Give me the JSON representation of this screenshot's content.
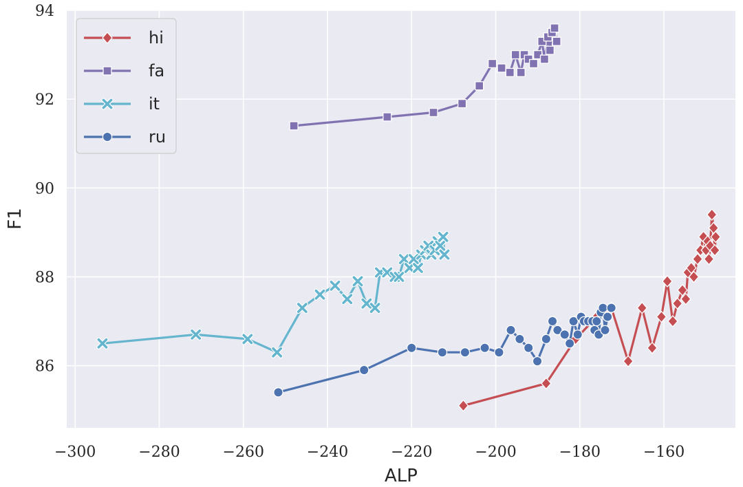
{
  "chart_data": {
    "type": "line",
    "title": "",
    "xlabel": "ALP",
    "ylabel": "F1",
    "xlim": [
      -302,
      -143
    ],
    "ylim": [
      84.6,
      94
    ],
    "xticks": [
      -300,
      -280,
      -260,
      -240,
      -220,
      -200,
      -180,
      -160
    ],
    "xtick_labels": [
      "−300",
      "−280",
      "−260",
      "−240",
      "−220",
      "−200",
      "−180",
      "−160"
    ],
    "yticks": [
      86,
      88,
      90,
      92,
      94
    ],
    "ytick_labels": [
      "86",
      "88",
      "90",
      "92",
      "94"
    ],
    "grid": true,
    "background": "#eaeaf2",
    "legend_position": "top-left",
    "series": [
      {
        "name": "hi",
        "color": "#c44e52",
        "marker": "diamond",
        "points": [
          [
            -207.7,
            85.1
          ],
          [
            -188.0,
            85.6
          ],
          [
            -181.0,
            86.6
          ],
          [
            -176.0,
            87.1
          ],
          [
            -174.5,
            87.2
          ],
          [
            -172.5,
            87.3
          ],
          [
            -168.5,
            86.1
          ],
          [
            -165.2,
            87.3
          ],
          [
            -162.8,
            86.4
          ],
          [
            -160.6,
            87.1
          ],
          [
            -159.2,
            87.9
          ],
          [
            -157.9,
            87.0
          ],
          [
            -156.8,
            87.4
          ],
          [
            -155.6,
            87.7
          ],
          [
            -154.8,
            87.5
          ],
          [
            -154.3,
            88.1
          ],
          [
            -153.5,
            88.2
          ],
          [
            -152.9,
            88.0
          ],
          [
            -152.0,
            88.4
          ],
          [
            -151.3,
            88.6
          ],
          [
            -150.6,
            88.9
          ],
          [
            -150.0,
            88.6
          ],
          [
            -149.6,
            88.8
          ],
          [
            -149.3,
            88.4
          ],
          [
            -149.0,
            88.7
          ],
          [
            -148.6,
            89.4
          ],
          [
            -148.2,
            89.1
          ],
          [
            -147.9,
            88.6
          ],
          [
            -147.7,
            88.9
          ]
        ]
      },
      {
        "name": "fa",
        "color": "#8172b2",
        "marker": "square",
        "points": [
          [
            -248.0,
            91.4
          ],
          [
            -225.8,
            91.6
          ],
          [
            -214.8,
            91.7
          ],
          [
            -208.0,
            91.9
          ],
          [
            -203.9,
            92.3
          ],
          [
            -200.8,
            92.8
          ],
          [
            -198.6,
            92.7
          ],
          [
            -196.6,
            92.6
          ],
          [
            -195.3,
            93.0
          ],
          [
            -194.0,
            92.6
          ],
          [
            -193.2,
            93.0
          ],
          [
            -192.2,
            92.9
          ],
          [
            -191.0,
            92.8
          ],
          [
            -190.0,
            93.0
          ],
          [
            -189.0,
            93.3
          ],
          [
            -188.4,
            92.9
          ],
          [
            -187.6,
            93.4
          ],
          [
            -187.1,
            93.1
          ],
          [
            -186.6,
            93.5
          ],
          [
            -186.0,
            93.6
          ],
          [
            -185.5,
            93.3
          ]
        ]
      },
      {
        "name": "it",
        "color": "#64b5cd",
        "marker": "x",
        "points": [
          [
            -293.5,
            86.5
          ],
          [
            -271.3,
            86.7
          ],
          [
            -259.0,
            86.6
          ],
          [
            -252.0,
            86.3
          ],
          [
            -246.0,
            87.3
          ],
          [
            -241.8,
            87.6
          ],
          [
            -238.2,
            87.8
          ],
          [
            -235.3,
            87.5
          ],
          [
            -232.8,
            87.9
          ],
          [
            -230.7,
            87.4
          ],
          [
            -228.7,
            87.3
          ],
          [
            -227.5,
            88.1
          ],
          [
            -225.8,
            88.1
          ],
          [
            -224.0,
            88.0
          ],
          [
            -223.0,
            88.0
          ],
          [
            -221.8,
            88.4
          ],
          [
            -220.5,
            88.2
          ],
          [
            -219.5,
            88.4
          ],
          [
            -218.5,
            88.2
          ],
          [
            -217.7,
            88.5
          ],
          [
            -216.8,
            88.6
          ],
          [
            -216.0,
            88.7
          ],
          [
            -215.3,
            88.5
          ],
          [
            -214.5,
            88.6
          ],
          [
            -213.8,
            88.8
          ],
          [
            -213.2,
            88.7
          ],
          [
            -212.5,
            88.9
          ],
          [
            -212.2,
            88.5
          ]
        ]
      },
      {
        "name": "ru",
        "color": "#4c72b0",
        "marker": "circle",
        "points": [
          [
            -251.7,
            85.4
          ],
          [
            -231.3,
            85.9
          ],
          [
            -220.0,
            86.4
          ],
          [
            -212.7,
            86.3
          ],
          [
            -207.3,
            86.3
          ],
          [
            -202.6,
            86.4
          ],
          [
            -199.2,
            86.3
          ],
          [
            -196.4,
            86.8
          ],
          [
            -194.3,
            86.6
          ],
          [
            -192.2,
            86.4
          ],
          [
            -190.1,
            86.1
          ],
          [
            -188.0,
            86.6
          ],
          [
            -186.5,
            87.0
          ],
          [
            -185.3,
            86.8
          ],
          [
            -183.6,
            86.7
          ],
          [
            -182.4,
            86.5
          ],
          [
            -181.5,
            87.0
          ],
          [
            -180.5,
            86.7
          ],
          [
            -179.7,
            87.1
          ],
          [
            -179.0,
            87.0
          ],
          [
            -178.0,
            87.0
          ],
          [
            -177.0,
            87.0
          ],
          [
            -176.5,
            86.8
          ],
          [
            -176.0,
            87.0
          ],
          [
            -175.5,
            86.7
          ],
          [
            -175.0,
            87.2
          ],
          [
            -174.5,
            87.3
          ],
          [
            -174.0,
            86.8
          ],
          [
            -173.4,
            87.1
          ],
          [
            -172.5,
            87.3
          ]
        ]
      }
    ]
  }
}
